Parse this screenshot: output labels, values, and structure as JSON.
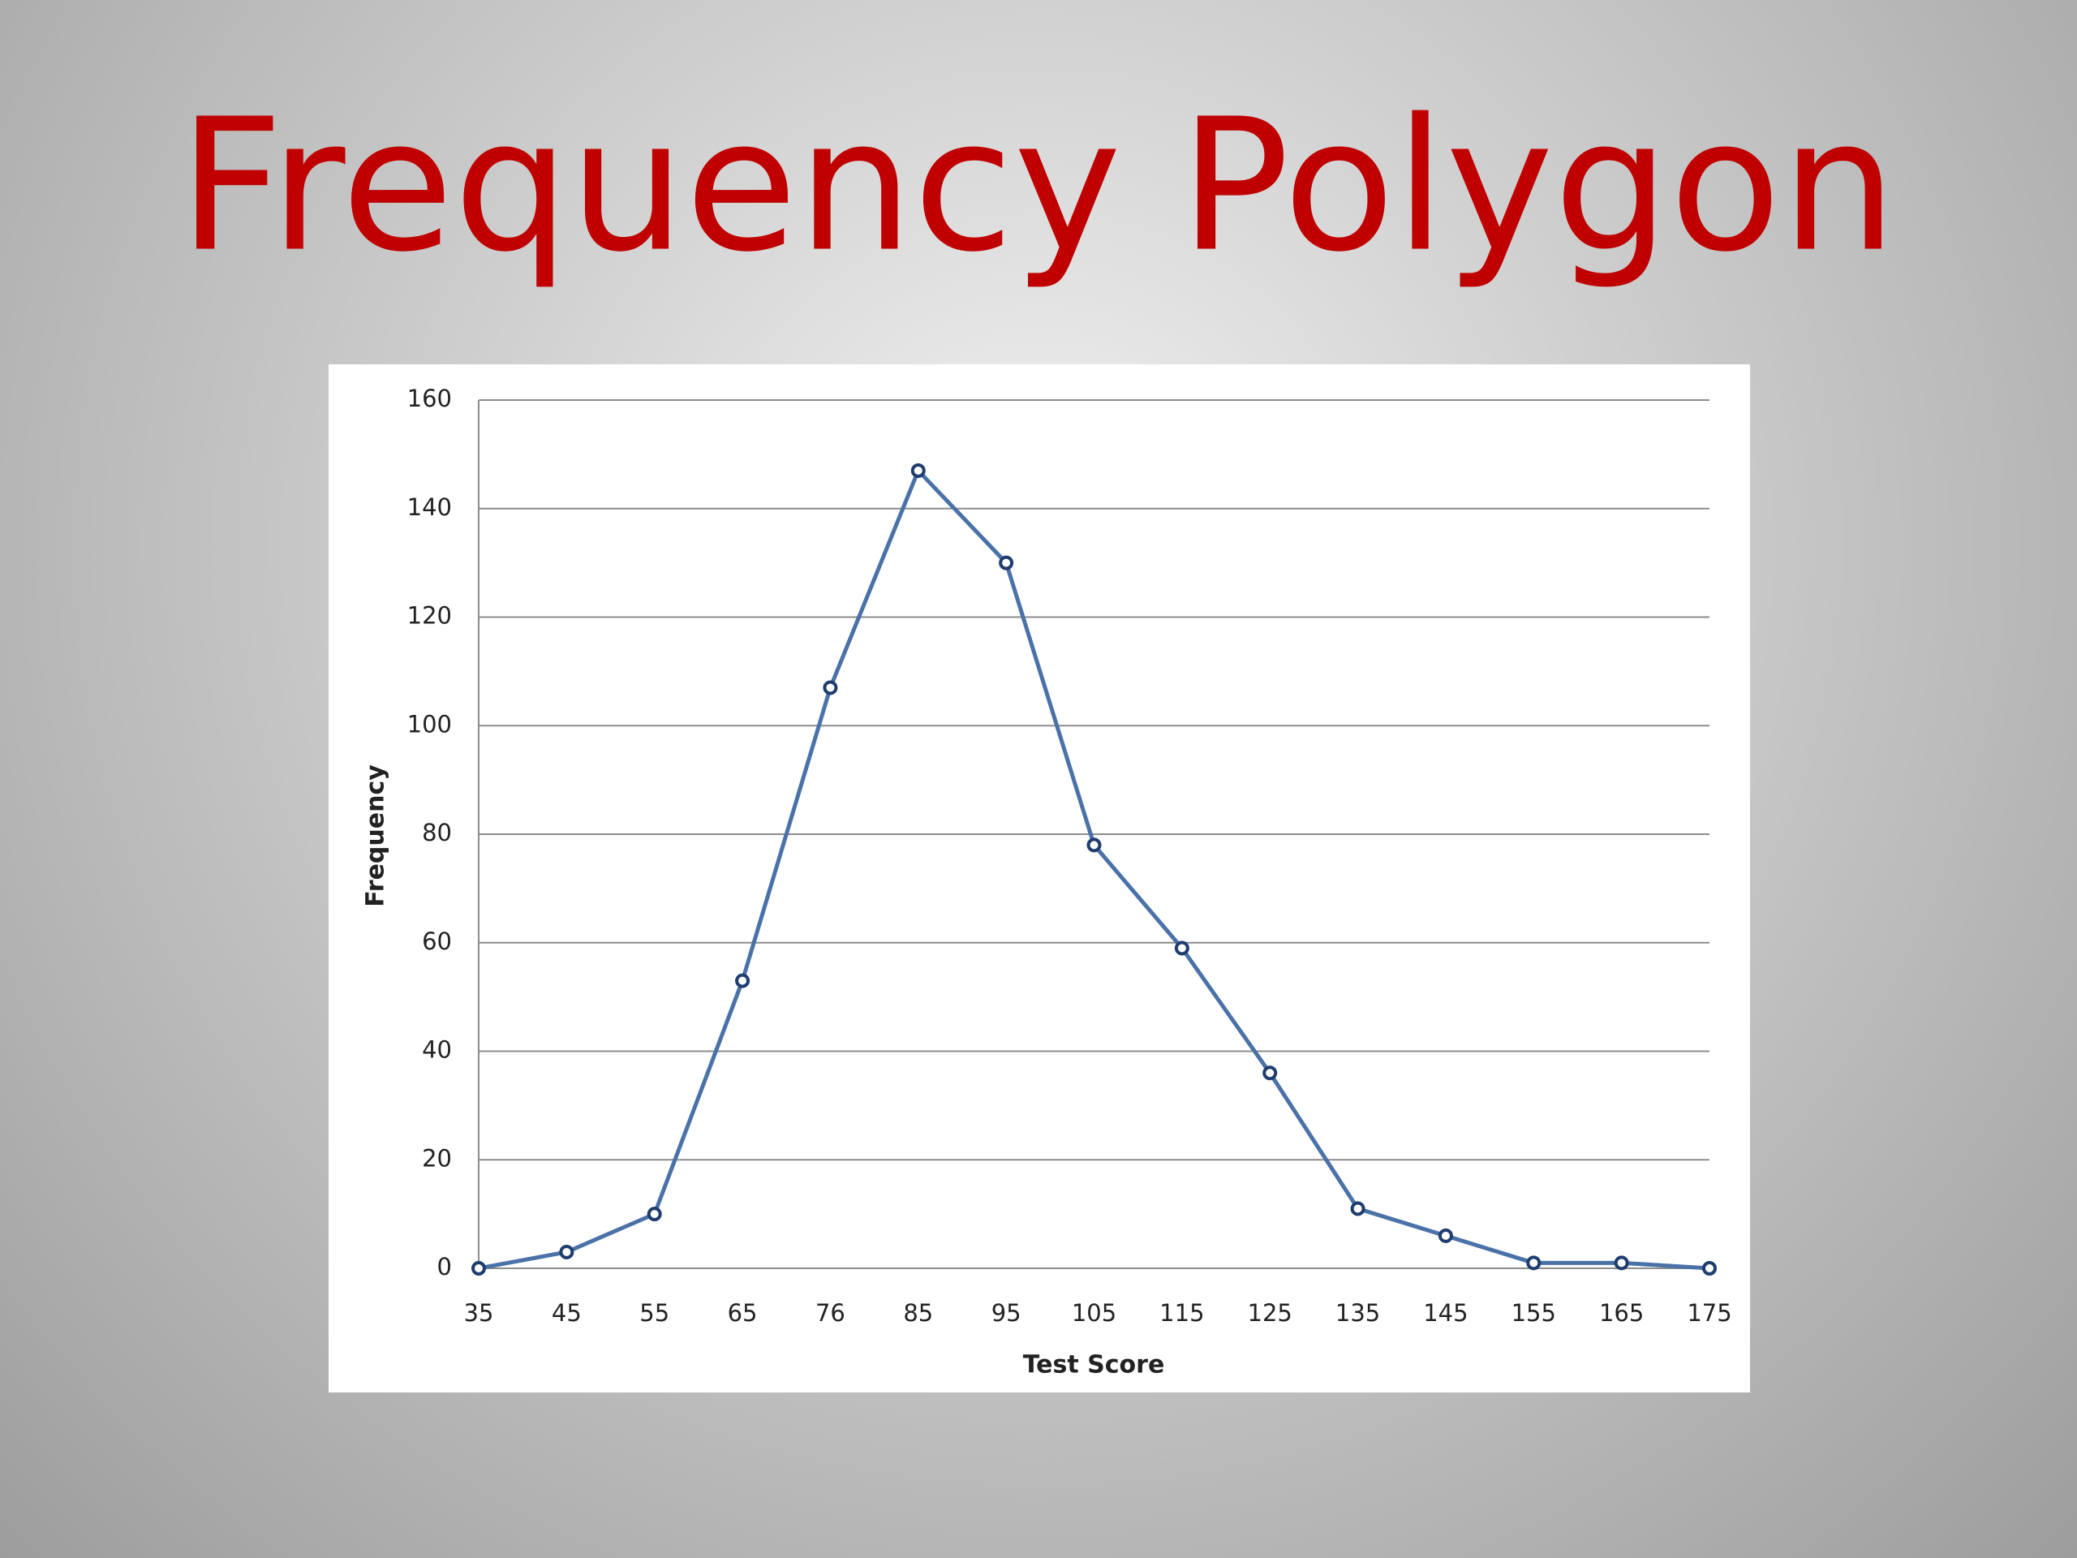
{
  "chart_data": {
    "type": "line",
    "title": "Frequency Polygon",
    "x_label": "Test Score",
    "y_label": "Frequency",
    "categories": [
      "35",
      "45",
      "55",
      "65",
      "76",
      "85",
      "95",
      "105",
      "115",
      "125",
      "135",
      "145",
      "155",
      "165",
      "175"
    ],
    "values": [
      0,
      3,
      10,
      53,
      107,
      147,
      130,
      78,
      59,
      36,
      11,
      6,
      1,
      1,
      0
    ],
    "color": "#4a72a8",
    "ylim": [
      0,
      160
    ],
    "yticks": [
      0,
      20,
      40,
      60,
      80,
      100,
      120,
      140,
      160
    ],
    "grid": true
  }
}
